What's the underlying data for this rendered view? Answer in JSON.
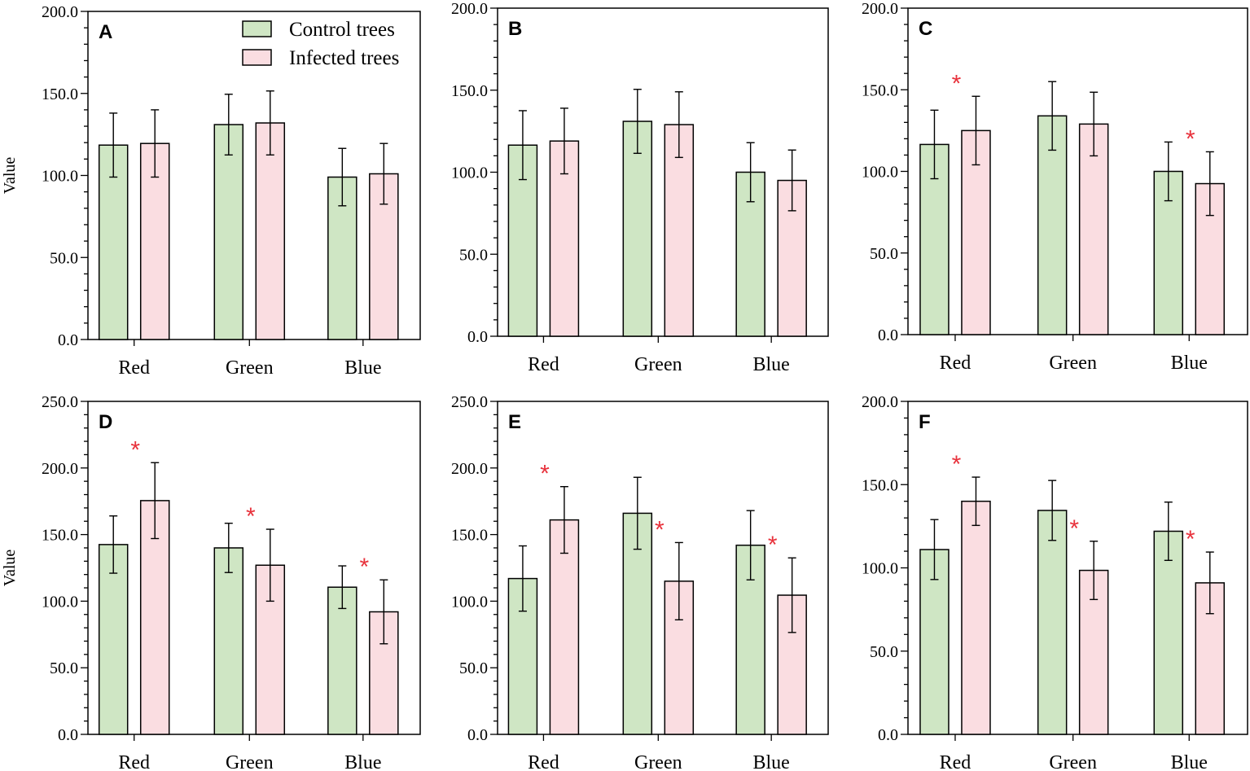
{
  "colors": {
    "control_fill": "#cfe6c4",
    "infected_fill": "#fadde1",
    "stroke": "#000000",
    "significance": "#e8323c"
  },
  "legend": {
    "control_label": "Control trees",
    "infected_label": "Infected trees"
  },
  "y_label": "Value",
  "chart_data": [
    {
      "type": "bar",
      "panel": "A",
      "categories": [
        "Red",
        "Green",
        "Blue"
      ],
      "ylim": [
        0,
        200
      ],
      "yticks": [
        0,
        50,
        100,
        150,
        200
      ],
      "ytick_labels": [
        "0.0",
        "50.0",
        "100.0",
        "150.0",
        "200.0"
      ],
      "ylabel": "Value",
      "series": [
        {
          "name": "Control trees",
          "values": [
            118.5,
            131,
            99
          ],
          "errors": [
            19.5,
            18.5,
            17.5
          ]
        },
        {
          "name": "Infected trees",
          "values": [
            119.5,
            132,
            101
          ],
          "errors": [
            20.5,
            19.5,
            18.5
          ]
        }
      ],
      "significant": [
        [
          false,
          false,
          false
        ],
        [
          false,
          false,
          false
        ]
      ]
    },
    {
      "type": "bar",
      "panel": "B",
      "categories": [
        "Red",
        "Green",
        "Blue"
      ],
      "ylim": [
        0,
        200
      ],
      "yticks": [
        0,
        50,
        100,
        150,
        200
      ],
      "ytick_labels": [
        "0.0",
        "50.0",
        "100.0",
        "150.0",
        "200.0"
      ],
      "ylabel": "",
      "series": [
        {
          "name": "Control trees",
          "values": [
            116.5,
            131,
            100
          ],
          "errors": [
            21,
            19.5,
            18
          ]
        },
        {
          "name": "Infected trees",
          "values": [
            119,
            129,
            95
          ],
          "errors": [
            20,
            20,
            18.5
          ]
        }
      ],
      "significant": [
        [
          false,
          false,
          false
        ],
        [
          false,
          false,
          false
        ]
      ]
    },
    {
      "type": "bar",
      "panel": "C",
      "categories": [
        "Red",
        "Green",
        "Blue"
      ],
      "ylim": [
        0,
        200
      ],
      "yticks": [
        0,
        50,
        100,
        150,
        200
      ],
      "ytick_labels": [
        "0.0",
        "50.0",
        "100.0",
        "150.0",
        "200.0"
      ],
      "ylabel": "",
      "series": [
        {
          "name": "Control trees",
          "values": [
            116.5,
            134,
            100
          ],
          "errors": [
            21,
            21,
            18
          ]
        },
        {
          "name": "Infected trees",
          "values": [
            125,
            129,
            92.5
          ],
          "errors": [
            21,
            19.5,
            19.5
          ]
        }
      ],
      "significant": [
        [
          false,
          false,
          false
        ],
        [
          true,
          false,
          true
        ]
      ]
    },
    {
      "type": "bar",
      "panel": "D",
      "categories": [
        "Red",
        "Green",
        "Blue"
      ],
      "ylim": [
        0,
        250
      ],
      "yticks": [
        0,
        50,
        100,
        150,
        200,
        250
      ],
      "ytick_labels": [
        "0.0",
        "50.0",
        "100.0",
        "150.0",
        "200.0",
        "250.0"
      ],
      "ylabel": "Value",
      "series": [
        {
          "name": "Control trees",
          "values": [
            142.5,
            140,
            110.5
          ],
          "errors": [
            21.5,
            18.5,
            16
          ]
        },
        {
          "name": "Infected trees",
          "values": [
            175.5,
            127,
            92
          ],
          "errors": [
            28.5,
            27,
            24
          ]
        }
      ],
      "significant": [
        [
          false,
          false,
          false
        ],
        [
          true,
          true,
          true
        ]
      ]
    },
    {
      "type": "bar",
      "panel": "E",
      "categories": [
        "Red",
        "Green",
        "Blue"
      ],
      "ylim": [
        0,
        250
      ],
      "yticks": [
        0,
        50,
        100,
        150,
        200,
        250
      ],
      "ytick_labels": [
        "0.0",
        "50.0",
        "100.0",
        "150.0",
        "200.0",
        "250.0"
      ],
      "ylabel": "",
      "series": [
        {
          "name": "Control trees",
          "values": [
            117,
            166,
            142
          ],
          "errors": [
            24.5,
            27,
            26
          ]
        },
        {
          "name": "Infected trees",
          "values": [
            161,
            115,
            104.5
          ],
          "errors": [
            25,
            29,
            28
          ]
        }
      ],
      "significant": [
        [
          false,
          false,
          false
        ],
        [
          true,
          true,
          true
        ]
      ]
    },
    {
      "type": "bar",
      "panel": "F",
      "categories": [
        "Red",
        "Green",
        "Blue"
      ],
      "ylim": [
        0,
        200
      ],
      "yticks": [
        0,
        50,
        100,
        150,
        200
      ],
      "ytick_labels": [
        "0.0",
        "50.0",
        "100.0",
        "150.0",
        "200.0"
      ],
      "ylabel": "",
      "series": [
        {
          "name": "Control trees",
          "values": [
            111,
            134.5,
            122
          ],
          "errors": [
            18,
            18,
            17.5
          ]
        },
        {
          "name": "Infected trees",
          "values": [
            140,
            98.5,
            91
          ],
          "errors": [
            14.5,
            17.5,
            18.5
          ]
        }
      ],
      "significant": [
        [
          false,
          false,
          false
        ],
        [
          true,
          true,
          true
        ]
      ]
    }
  ]
}
